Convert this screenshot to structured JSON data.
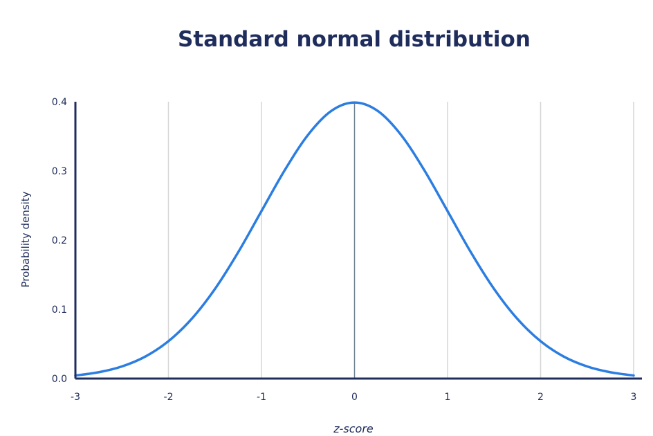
{
  "chart_data": {
    "type": "line",
    "title": "Standard normal distribution",
    "xlabel": "z-score",
    "ylabel": "Probability density",
    "xlim": [
      -3,
      3
    ],
    "ylim": [
      0,
      0.4
    ],
    "x_ticks": [
      -3,
      -2,
      -1,
      0,
      1,
      2,
      3
    ],
    "x_tick_labels": [
      "-3",
      "-2",
      "-1",
      "0",
      "1",
      "2",
      "3"
    ],
    "y_ticks": [
      0,
      0.1,
      0.2,
      0.3,
      0.4
    ],
    "y_tick_labels": [
      "0.0",
      "0.1",
      "0.2",
      "0.3",
      "0.4"
    ],
    "grid": "vertical",
    "legend": "none",
    "series": [
      {
        "x": [
          -3,
          -2.75,
          -2.5,
          -2.25,
          -2,
          -1.75,
          -1.5,
          -1.25,
          -1,
          -0.75,
          -0.5,
          -0.25,
          0,
          0.25,
          0.5,
          0.75,
          1,
          1.25,
          1.5,
          1.75,
          2,
          2.25,
          2.5,
          2.75,
          3
        ],
        "values": [
          0.0044,
          0.0091,
          0.0175,
          0.0317,
          0.054,
          0.0863,
          0.1295,
          0.1826,
          0.242,
          0.3011,
          0.3521,
          0.3867,
          0.3989,
          0.3867,
          0.3521,
          0.3011,
          0.242,
          0.1826,
          0.1295,
          0.0863,
          0.054,
          0.0317,
          0.0175,
          0.0091,
          0.0044
        ]
      }
    ],
    "colors": {
      "curve": "#2b7de1",
      "axis": "#1f2d5c",
      "grid": "#d6d6d6",
      "mean_line": "#6f8290",
      "text": "#1f2d5c"
    }
  }
}
